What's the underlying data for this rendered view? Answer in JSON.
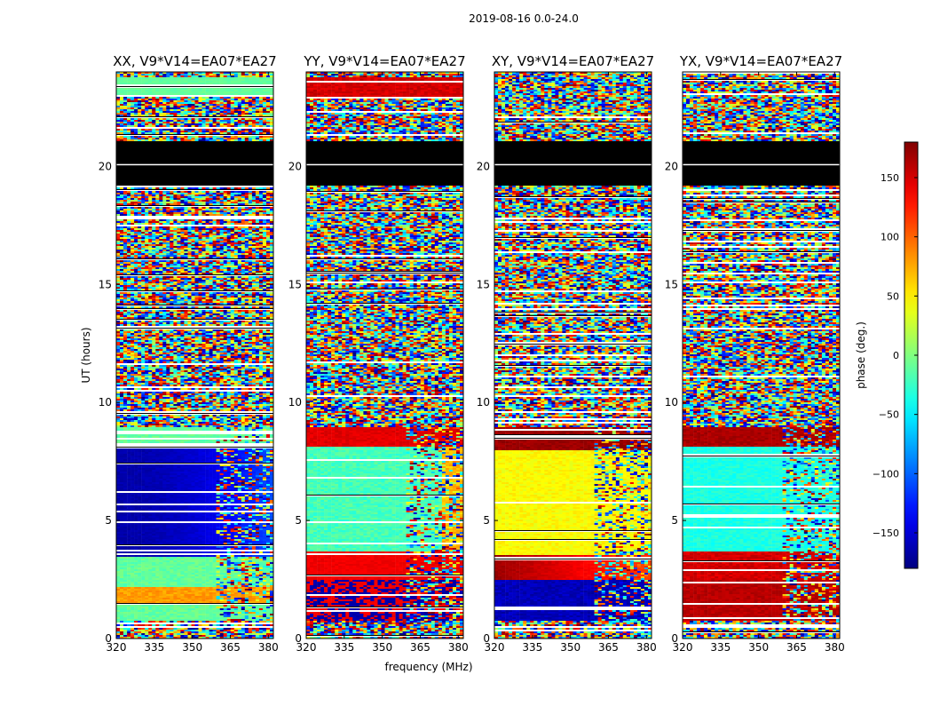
{
  "figure": {
    "title": "2019-08-16 0.0-24.0"
  },
  "chart_data": {
    "type": "heatmap",
    "title": "2019-08-16 0.0-24.0",
    "xlabel": "frequency (MHz)",
    "ylabel": "UT (hours)",
    "xlim": [
      320,
      382
    ],
    "ylim": [
      0,
      24
    ],
    "x_ticks": [
      320,
      335,
      350,
      365,
      380
    ],
    "y_ticks": [
      0,
      5,
      10,
      15,
      20
    ],
    "colorbar": {
      "label": "phase (deg.)",
      "range": [
        -180,
        180
      ],
      "ticks": [
        -150,
        -100,
        -50,
        0,
        50,
        100,
        150
      ],
      "tick_labels": [
        "−150",
        "−100",
        "−50",
        "0",
        "50",
        "100",
        "150"
      ],
      "colormap": "jet"
    },
    "panels": [
      {
        "name": "XX, V9*V14=EA07*EA27"
      },
      {
        "name": "YY, V9*V14=EA07*EA27"
      },
      {
        "name": "XY, V9*V14=EA07*EA27"
      },
      {
        "name": "YX, V9*V14=EA07*EA27"
      }
    ],
    "flagged_intervals_hours": [
      [
        19.2,
        21.1
      ]
    ]
  }
}
